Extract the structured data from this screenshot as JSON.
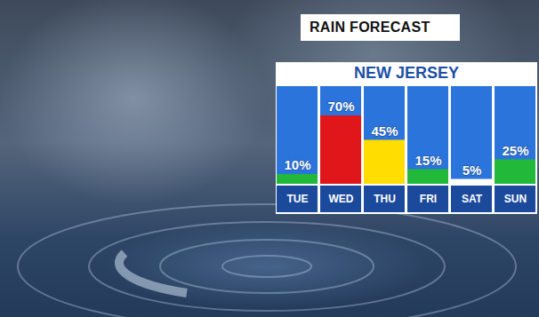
{
  "chart_data": {
    "type": "bar",
    "title": "RAIN FORECAST",
    "subtitle": "NEW JERSEY",
    "categories": [
      "TUE",
      "WED",
      "THU",
      "FRI",
      "SAT",
      "SUN"
    ],
    "values": [
      10,
      70,
      45,
      15,
      5,
      25
    ],
    "value_labels": [
      "10%",
      "70%",
      "45%",
      "15%",
      "5%",
      "25%"
    ],
    "colors": [
      "#22b83a",
      "#e0161b",
      "#ffdd00",
      "#22b83a",
      "#ffffff",
      "#22b83a"
    ],
    "ylim": [
      0,
      100
    ],
    "yticks": [],
    "tick_labels": "x",
    "data_labels": true
  }
}
